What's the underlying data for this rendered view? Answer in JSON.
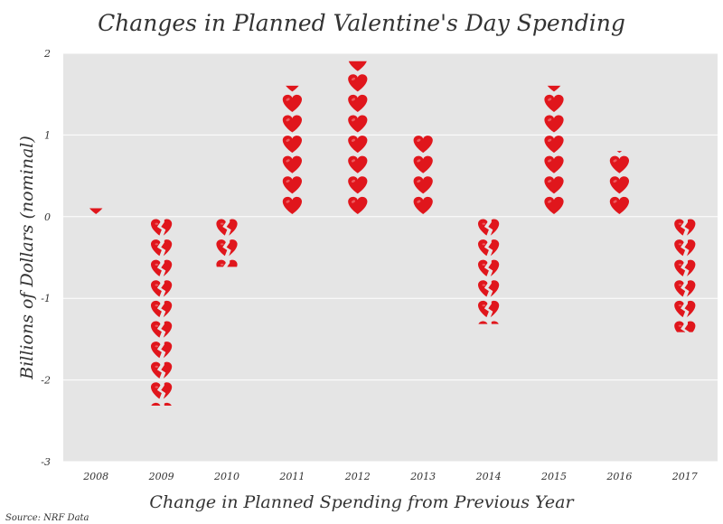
{
  "chart_data": {
    "type": "bar",
    "title": "Changes in Planned Valentine's Day Spending",
    "xlabel": "Change in Planned Spending from Previous Year",
    "ylabel": "Billions of Dollars (nominal)",
    "source": "Source: NRF Data",
    "categories": [
      "2008",
      "2009",
      "2010",
      "2011",
      "2012",
      "2013",
      "2014",
      "2015",
      "2016",
      "2017"
    ],
    "values": [
      0.1,
      -2.3,
      -0.6,
      1.6,
      1.9,
      1.0,
      -1.3,
      1.6,
      0.8,
      -1.4
    ],
    "ylim": [
      -3,
      2
    ],
    "yticks": [
      "2",
      "1",
      "0",
      "-1",
      "-2",
      "-3"
    ],
    "grid": "horizontal",
    "unit_per_icon": 0.25,
    "positive_icon": "red-heart-icon",
    "negative_icon": "broken-heart-icon",
    "colors": {
      "heart": "#e0161c",
      "heart_highlight": "#f4787a",
      "plot_background": "#e5e5e5",
      "gridline": "#ffffff",
      "text": "#333333"
    }
  }
}
